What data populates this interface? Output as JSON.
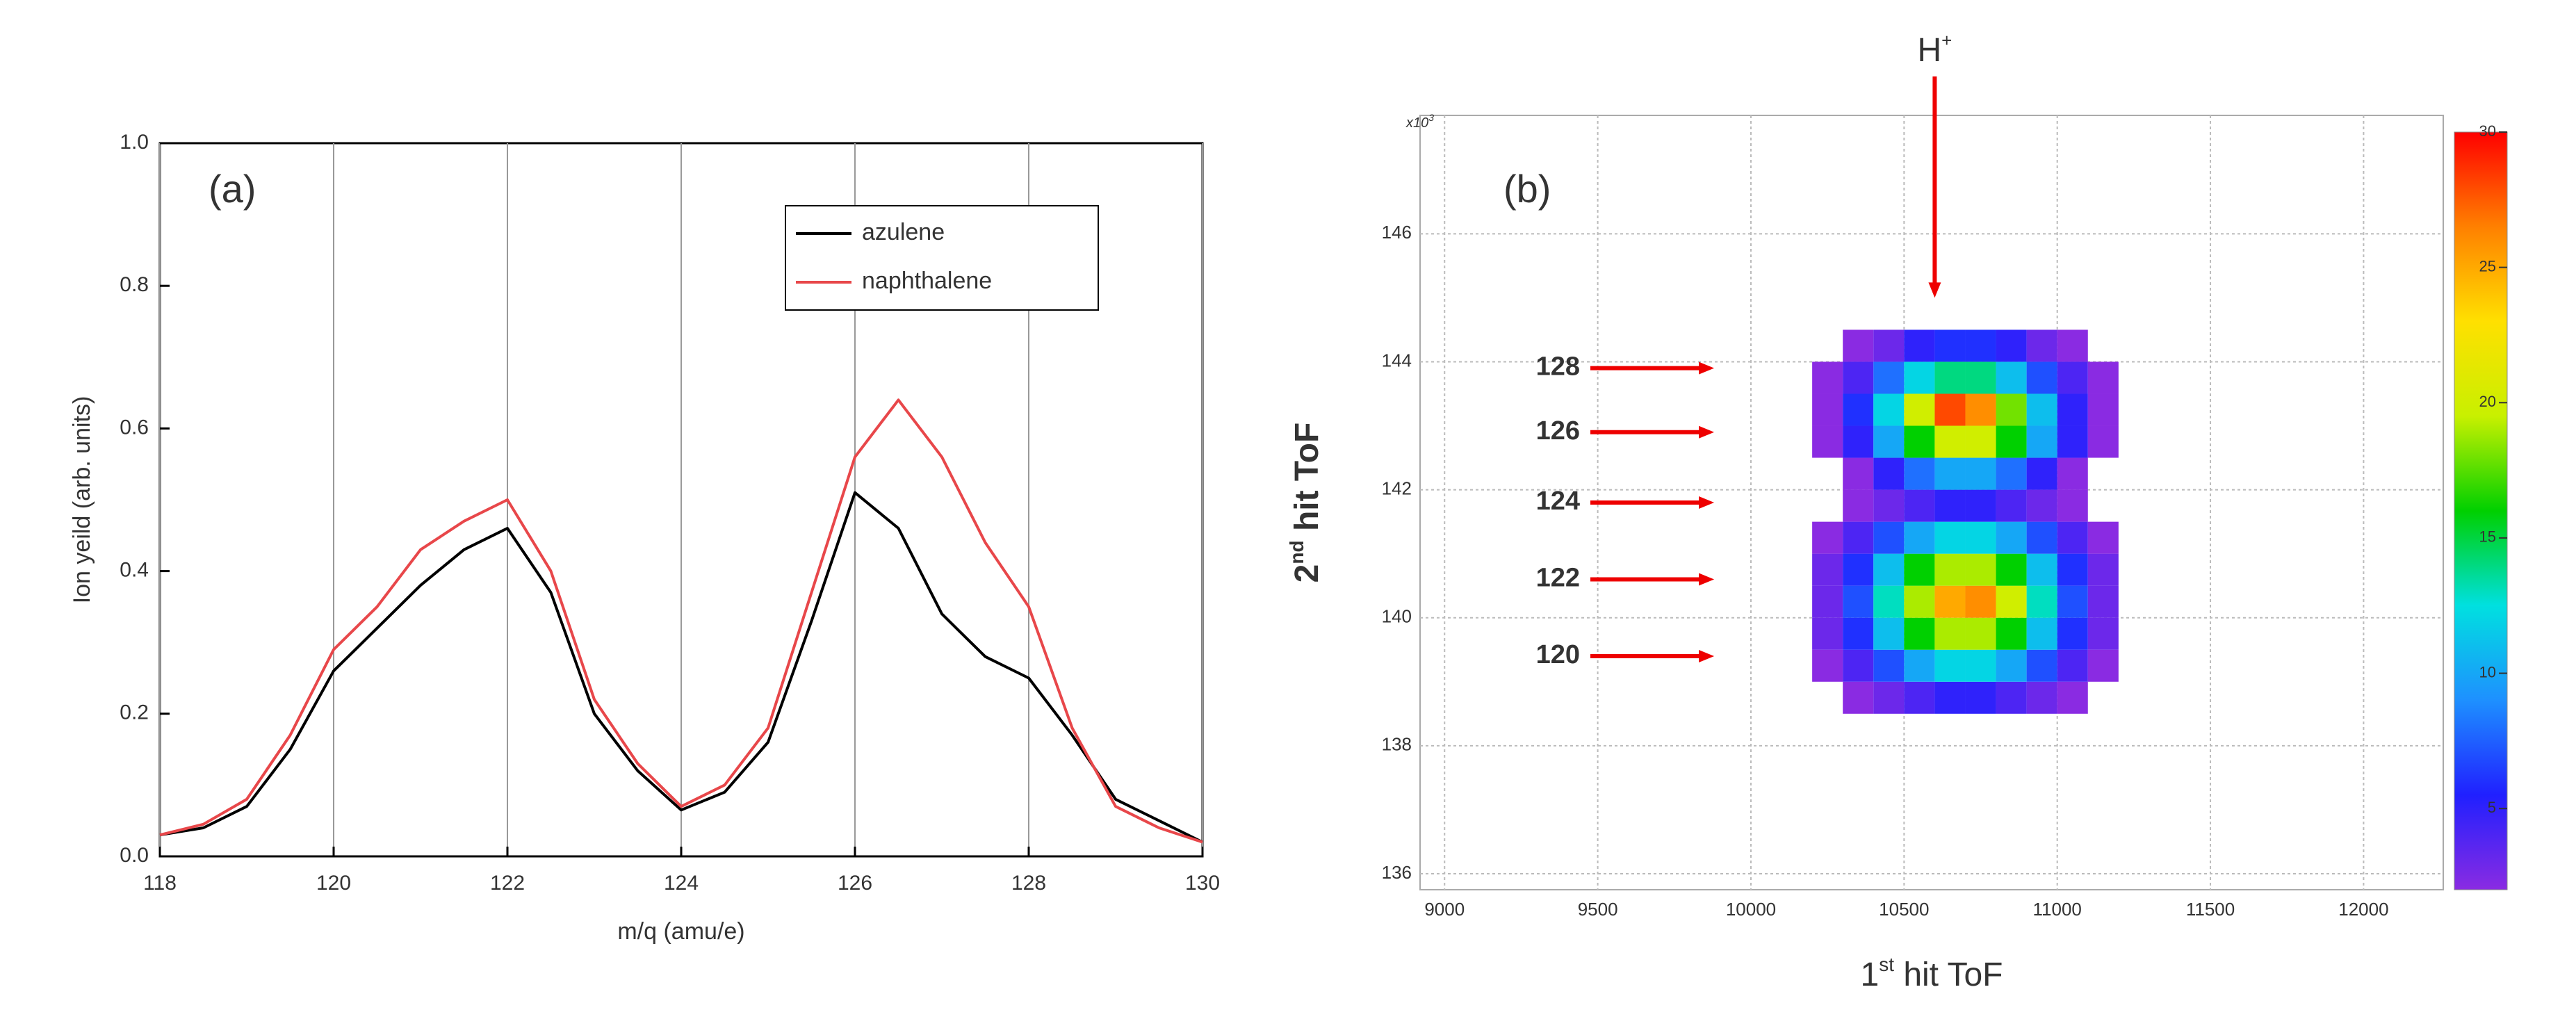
{
  "chart_data": [
    {
      "type": "line",
      "panel_label": "(a)",
      "xlabel": "m/q (amu/e)",
      "ylabel": "Ion yeild (arb. units)",
      "x": [
        118,
        118.5,
        119,
        119.5,
        120,
        120.5,
        121,
        121.5,
        122,
        122.5,
        123,
        123.5,
        124,
        124.5,
        125,
        125.5,
        126,
        126.5,
        127,
        127.5,
        128,
        128.5,
        129,
        129.5,
        130
      ],
      "series": [
        {
          "name": "azulene",
          "color": "#000000",
          "values": [
            0.03,
            0.04,
            0.07,
            0.15,
            0.26,
            0.32,
            0.38,
            0.43,
            0.46,
            0.37,
            0.2,
            0.12,
            0.065,
            0.09,
            0.16,
            0.33,
            0.51,
            0.46,
            0.34,
            0.28,
            0.25,
            0.17,
            0.08,
            0.05,
            0.02
          ]
        },
        {
          "name": "naphthalene",
          "color": "#e8474a",
          "values": [
            0.03,
            0.045,
            0.08,
            0.17,
            0.29,
            0.35,
            0.43,
            0.47,
            0.5,
            0.4,
            0.22,
            0.13,
            0.07,
            0.1,
            0.18,
            0.37,
            0.56,
            0.64,
            0.56,
            0.44,
            0.35,
            0.18,
            0.07,
            0.04,
            0.02
          ]
        }
      ],
      "xlim": [
        118,
        130
      ],
      "xticks": [
        118,
        120,
        122,
        124,
        126,
        128,
        130
      ],
      "ylim": [
        0,
        1
      ],
      "yticks": [
        {
          "value": 0,
          "label": "0.0"
        },
        {
          "value": 0.2,
          "label": "0.2"
        },
        {
          "value": 0.4,
          "label": "0.4"
        },
        {
          "value": 0.6,
          "label": "0.6"
        },
        {
          "value": 0.8,
          "label": "0.8"
        },
        {
          "value": 1,
          "label": "1.0"
        }
      ],
      "grid": "x",
      "legend": "upper right"
    },
    {
      "type": "heatmap",
      "panel_label": "(b)",
      "xlabel": [
        "1",
        "st",
        " hit ToF"
      ],
      "ylabel": [
        "2",
        "nd",
        " hit ToF"
      ],
      "y_multiplier": [
        "x10",
        "3"
      ],
      "x_bins": [
        10200,
        10300,
        10400,
        10500,
        10600,
        10700,
        10800,
        10900,
        11000,
        11100,
        11200
      ],
      "y_bins": [
        138.5,
        139,
        139.5,
        140,
        140.5,
        141,
        141.5,
        142,
        142.5,
        143,
        143.5,
        144,
        144.5
      ],
      "z": [
        [
          null,
          2,
          3,
          4,
          5,
          5,
          4,
          3,
          2,
          null
        ],
        [
          2,
          4,
          7,
          10,
          12,
          12,
          10,
          7,
          4,
          2
        ],
        [
          3,
          6,
          11,
          16,
          19,
          19,
          16,
          11,
          6,
          3
        ],
        [
          3,
          7,
          13,
          19,
          25,
          26,
          20,
          13,
          7,
          3
        ],
        [
          3,
          6,
          11,
          16,
          19,
          19,
          16,
          11,
          6,
          3
        ],
        [
          2,
          4,
          7,
          10,
          12,
          12,
          10,
          7,
          4,
          2
        ],
        [
          null,
          2,
          3,
          4,
          5,
          5,
          4,
          3,
          2,
          null
        ],
        [
          null,
          2,
          5,
          8,
          10,
          10,
          8,
          5,
          2,
          null
        ],
        [
          2,
          5,
          10,
          16,
          20,
          20,
          16,
          10,
          5,
          2
        ],
        [
          2,
          6,
          12,
          20,
          28,
          26,
          18,
          11,
          5,
          2
        ],
        [
          2,
          4,
          8,
          12,
          14,
          14,
          11,
          7,
          4,
          2
        ],
        [
          null,
          2,
          3,
          5,
          6,
          6,
          5,
          3,
          2,
          null
        ]
      ],
      "colorscale": [
        "#8a2be2",
        "#2020ff",
        "#1e90ff",
        "#00e0e0",
        "#00d000",
        "#c8f000",
        "#ffe000",
        "#ff8000",
        "#ff0000"
      ],
      "cblim": [
        2,
        30
      ],
      "cbticks": [
        5,
        10,
        15,
        20,
        25,
        30
      ],
      "xlim": [
        8920,
        12260
      ],
      "xticks": [
        9000,
        9500,
        10000,
        10500,
        11000,
        11500,
        12000
      ],
      "ylim": [
        135.75,
        147.85
      ],
      "yticks": [
        136,
        138,
        140,
        142,
        144,
        146
      ],
      "grid": true,
      "annotations": [
        {
          "text": "128",
          "y": 143.9
        },
        {
          "text": "126",
          "y": 142.9
        },
        {
          "text": "124",
          "y": 141.8
        },
        {
          "text": "122",
          "y": 140.6
        },
        {
          "text": "120",
          "y": 139.4
        }
      ],
      "arrow_end_x": 9880,
      "top_marker": {
        "text": [
          "H",
          "+"
        ],
        "x": 10600,
        "y": 145
      }
    }
  ]
}
